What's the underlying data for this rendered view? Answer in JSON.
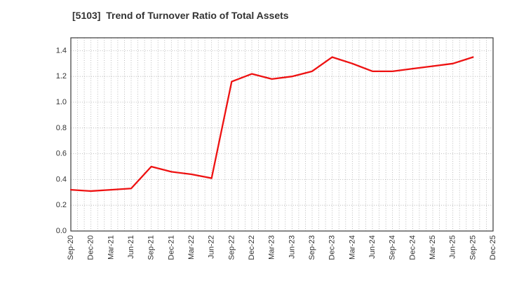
{
  "chart": {
    "title": "[5103]  Trend of Turnover Ratio of Total Assets"
  },
  "chart_data": {
    "type": "line",
    "title": "[5103]  Trend of Turnover Ratio of Total Assets",
    "x_tick_labels": [
      "Sep-20",
      "Dec-20",
      "Mar-21",
      "Jun-21",
      "Sep-21",
      "Dec-21",
      "Mar-22",
      "Jun-22",
      "Sep-22",
      "Dec-22",
      "Mar-23",
      "Jun-23",
      "Sep-23",
      "Dec-23",
      "Mar-24",
      "Jun-24",
      "Sep-24",
      "Dec-24",
      "Mar-25",
      "Jun-25",
      "Sep-25",
      "Dec-25"
    ],
    "series": [
      {
        "name": "Turnover Ratio of Total Assets",
        "color": "#ee1111",
        "x": [
          "Sep-20",
          "Dec-20",
          "Mar-21",
          "Jun-21",
          "Sep-21",
          "Dec-21",
          "Mar-22",
          "Jun-22",
          "Sep-22",
          "Dec-22",
          "Mar-23",
          "Jun-23",
          "Sep-23",
          "Dec-23",
          "Mar-24",
          "Jun-24",
          "Sep-24",
          "Dec-24",
          "Mar-25",
          "Jun-25",
          "Sep-25"
        ],
        "values": [
          0.32,
          0.31,
          0.32,
          0.33,
          0.5,
          0.46,
          0.44,
          0.41,
          1.16,
          1.22,
          1.18,
          1.2,
          1.24,
          1.35,
          1.3,
          1.24,
          1.24,
          1.26,
          1.28,
          1.3,
          1.35
        ]
      }
    ],
    "xlabel": "",
    "ylabel": "",
    "ylim": [
      0,
      1.5
    ],
    "yticks": [
      0.0,
      0.2,
      0.4,
      0.6,
      0.8,
      1.0,
      1.2,
      1.4
    ],
    "ytick_labels": [
      "0.0",
      "0.2",
      "0.4",
      "0.6",
      "0.8",
      "1.0",
      "1.2",
      "1.4"
    ],
    "grid": {
      "style": "dotted",
      "color": "#aaaaaa",
      "horizontal": "major 0.2 steps",
      "vertical": "minor monthly lines (3 per quarter)"
    },
    "legend": "none",
    "line_width": 2.3,
    "axis_color": "#3a3a3a",
    "tick_label_color": "#333333",
    "background": "#ffffff"
  }
}
